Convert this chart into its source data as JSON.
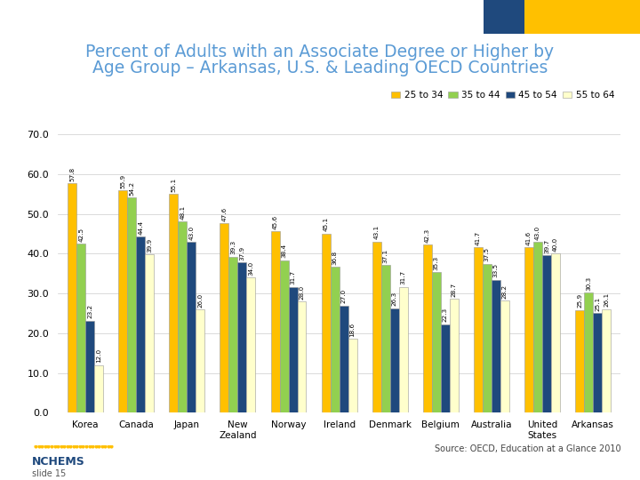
{
  "title_line1": "Percent of Adults with an Associate Degree or Higher by",
  "title_line2": "Age Group – Arkansas, U.S. & Leading OECD Countries",
  "title_color": "#5b9bd5",
  "categories": [
    "Korea",
    "Canada",
    "Japan",
    "New\nZealand",
    "Norway",
    "Ireland",
    "Denmark",
    "Belgium",
    "Australia",
    "United\nStates",
    "Arkansas"
  ],
  "series": {
    "25 to 34": [
      57.8,
      55.9,
      55.1,
      47.6,
      45.6,
      45.1,
      43.1,
      42.3,
      41.7,
      41.6,
      25.9
    ],
    "35 to 44": [
      42.5,
      54.2,
      48.1,
      39.3,
      38.4,
      36.8,
      37.1,
      35.3,
      37.5,
      43.0,
      30.3
    ],
    "45 to 54": [
      23.2,
      44.4,
      43.0,
      37.9,
      31.7,
      27.0,
      26.3,
      22.3,
      33.5,
      39.7,
      25.1
    ],
    "55 to 64": [
      12.0,
      39.9,
      26.0,
      34.0,
      28.0,
      18.6,
      31.7,
      28.7,
      28.2,
      40.0,
      26.1
    ]
  },
  "colors": {
    "25 to 34": "#ffc000",
    "35 to 44": "#92d050",
    "45 to 54": "#1f497d",
    "55 to 64": "#ffffcc"
  },
  "bar_edge_color": "#999999",
  "ylim": [
    0,
    70
  ],
  "yticks": [
    0.0,
    10.0,
    20.0,
    30.0,
    40.0,
    50.0,
    60.0,
    70.0
  ],
  "background_color": "#ffffff",
  "legend_labels": [
    "25 to 34",
    "35 to 44",
    "45 to 54",
    "55 to 64"
  ],
  "value_fontsize": 5.2,
  "title_fontsize": 13.5,
  "source_text": "Source: OECD, Education at a Glance 2010",
  "nchems_text": "NCHEMS",
  "slide_text": "slide 15",
  "rect1_color": "#1f497d",
  "rect2_color": "#ffc000"
}
